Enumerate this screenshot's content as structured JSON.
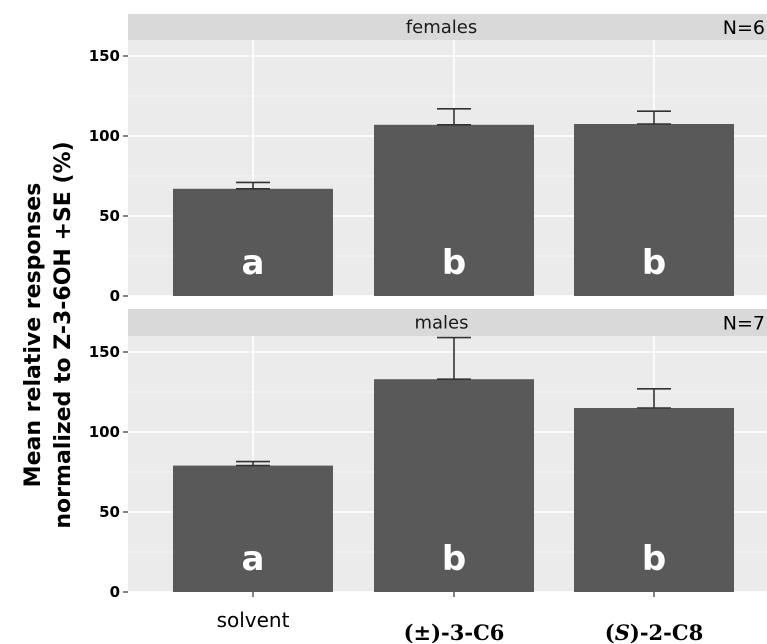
{
  "chart_data": {
    "type": "bar",
    "ylabel_line1": "Mean relative responses",
    "ylabel_line2": "normalized to Z-3-6OH +SE (%)",
    "categories": [
      "solvent",
      "(±)-3-C6",
      "(S)-2-C8"
    ],
    "category_parts": [
      [
        {
          "t": "solvent",
          "i": false
        }
      ],
      [
        {
          "t": "(±)-3-C6",
          "i": false
        }
      ],
      [
        {
          "t": "(",
          "i": false
        },
        {
          "t": "S",
          "i": true
        },
        {
          "t": ")-2-C8",
          "i": false
        }
      ]
    ],
    "ylim": [
      0,
      160
    ],
    "yticks": [
      0,
      50,
      100,
      150
    ],
    "panels": [
      {
        "strip": "females",
        "n_label": "N=6",
        "values": [
          67,
          107,
          107.5
        ],
        "errors": [
          4,
          10,
          8
        ],
        "letters": [
          "a",
          "b",
          "b"
        ]
      },
      {
        "strip": "males",
        "n_label": "N=7",
        "values": [
          79,
          133,
          115
        ],
        "errors": [
          2.5,
          26,
          12
        ],
        "letters": [
          "a",
          "b",
          "b"
        ]
      }
    ],
    "colors": {
      "bar": "#595959",
      "panel_bg": "#ebebeb",
      "strip_bg": "#d9d9d9",
      "grid": "#ffffff",
      "error": "#333333"
    }
  }
}
